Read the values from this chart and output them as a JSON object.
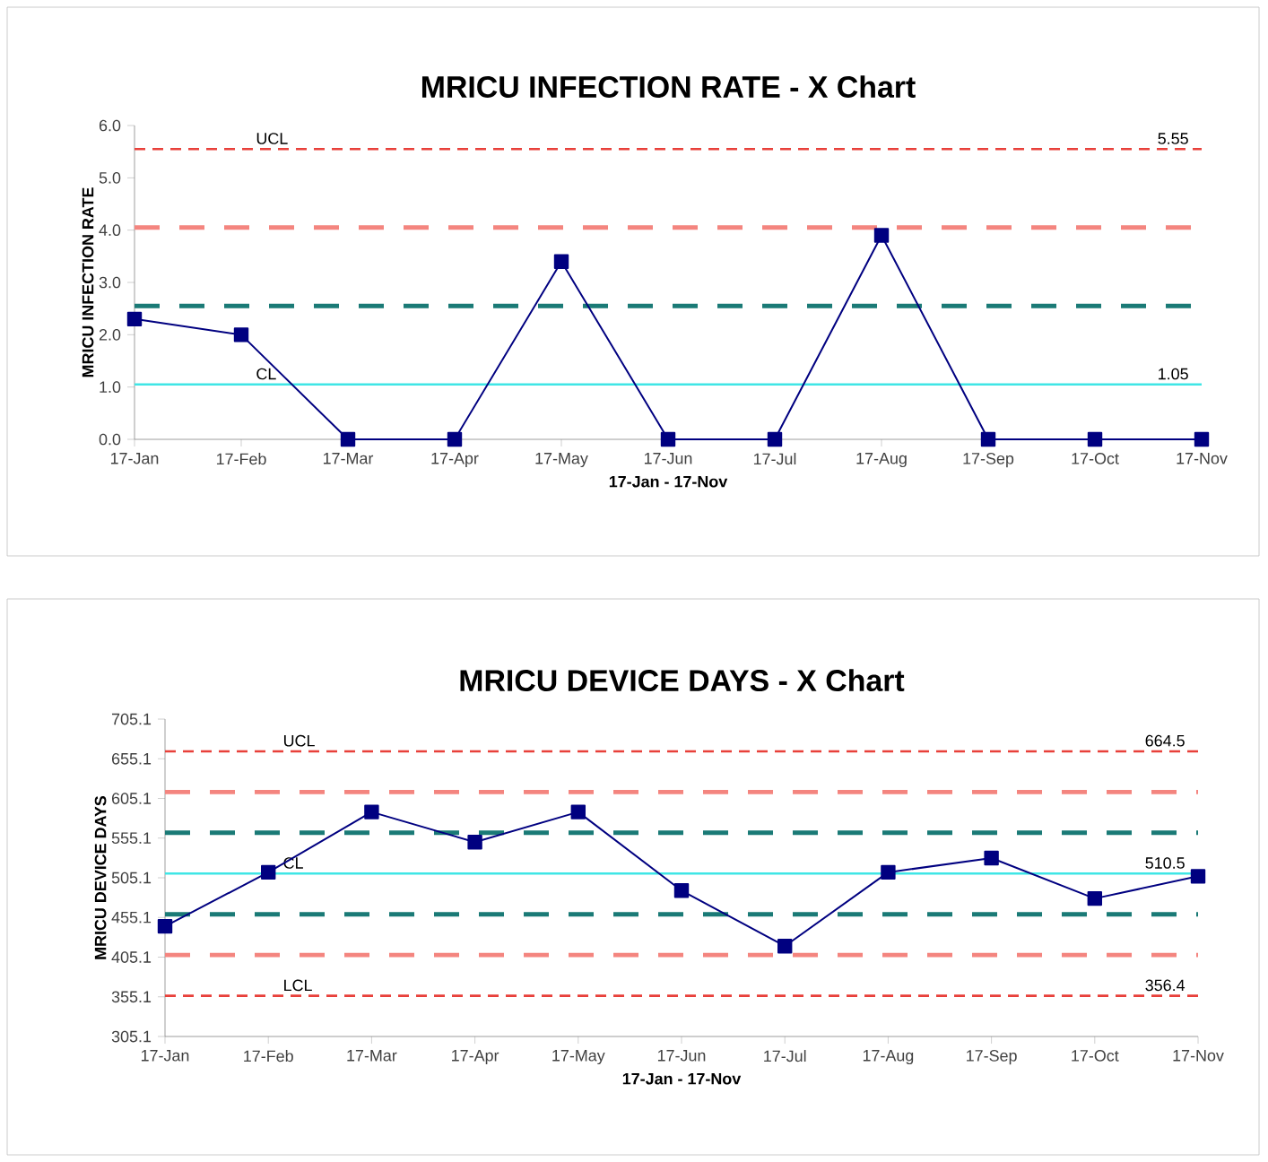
{
  "chart_data": [
    {
      "type": "line",
      "title": "MRICU INFECTION RATE - X Chart",
      "xlabel": "17-Jan - 17-Nov",
      "ylabel": "MRICU INFECTION RATE",
      "categories": [
        "17-Jan",
        "17-Feb",
        "17-Mar",
        "17-Apr",
        "17-May",
        "17-Jun",
        "17-Jul",
        "17-Aug",
        "17-Sep",
        "17-Oct",
        "17-Nov"
      ],
      "series": [
        {
          "color": "#000080",
          "values": [
            2.3,
            2.0,
            0,
            0,
            3.4,
            0,
            0,
            3.9,
            0,
            0,
            0
          ]
        }
      ],
      "marker": "square",
      "line_style": "solid",
      "ylim": [
        0,
        6
      ],
      "yticks": [
        {
          "value": 0,
          "label": "0.0"
        },
        {
          "value": 1,
          "label": "1.0"
        },
        {
          "value": 2,
          "label": "2.0"
        },
        {
          "value": 3,
          "label": "3.0"
        },
        {
          "value": 4,
          "label": "4.0"
        },
        {
          "value": 5,
          "label": "5.0"
        },
        {
          "value": 6,
          "label": "6.0"
        }
      ],
      "ref_lines": [
        {
          "axis": "y",
          "value": 5.55,
          "label": "UCL",
          "color": "#e8403a",
          "line_style": "dashed"
        },
        {
          "axis": "y",
          "value": 4.05,
          "color": "#f4857f",
          "line_style": "dashed"
        },
        {
          "axis": "y",
          "value": 2.55,
          "color": "#1a7a76",
          "line_style": "dashed"
        },
        {
          "axis": "y",
          "value": 1.05,
          "label": "CL",
          "color": "#3fe6e6",
          "line_style": "solid"
        }
      ],
      "annotations": [
        {
          "text": "5.55",
          "x": "17-Nov",
          "y": 5.55
        },
        {
          "text": "1.05",
          "x": "17-Nov",
          "y": 1.05
        }
      ]
    },
    {
      "type": "line",
      "title": "MRICU DEVICE DAYS - X Chart",
      "xlabel": "17-Jan - 17-Nov",
      "ylabel": "MRICU DEVICE DAYS",
      "categories": [
        "17-Jan",
        "17-Feb",
        "17-Mar",
        "17-Apr",
        "17-May",
        "17-Jun",
        "17-Jul",
        "17-Aug",
        "17-Sep",
        "17-Oct",
        "17-Nov"
      ],
      "series": [
        {
          "color": "#000080",
          "values": [
            444,
            512,
            588,
            550,
            588,
            489,
            419,
            512,
            530,
            479,
            507
          ]
        }
      ],
      "marker": "square",
      "line_style": "solid",
      "ylim": [
        305.1,
        705.1
      ],
      "yticks": [
        305.1,
        355.1,
        405.1,
        455.1,
        505.1,
        555.1,
        605.1,
        655.1,
        705.1
      ],
      "ref_lines": [
        {
          "axis": "y",
          "value": 664.5,
          "label": "UCL",
          "color": "#e8403a",
          "line_style": "dashed"
        },
        {
          "axis": "y",
          "value": 613.2,
          "color": "#f4857f",
          "line_style": "dashed"
        },
        {
          "axis": "y",
          "value": 561.9,
          "color": "#1a7a76",
          "line_style": "dashed"
        },
        {
          "axis": "y",
          "value": 510.5,
          "label": "CL",
          "color": "#3fe6e6",
          "line_style": "solid"
        },
        {
          "axis": "y",
          "value": 459.1,
          "color": "#1a7a76",
          "line_style": "dashed"
        },
        {
          "axis": "y",
          "value": 407.8,
          "color": "#f4857f",
          "line_style": "dashed"
        },
        {
          "axis": "y",
          "value": 356.4,
          "label": "LCL",
          "color": "#e8403a",
          "line_style": "dashed"
        }
      ],
      "annotations": [
        {
          "text": "664.5",
          "x": "17-Nov",
          "y": 664.5
        },
        {
          "text": "510.5",
          "x": "17-Nov",
          "y": 510.5
        },
        {
          "text": "356.4",
          "x": "17-Nov",
          "y": 356.4
        }
      ]
    }
  ]
}
